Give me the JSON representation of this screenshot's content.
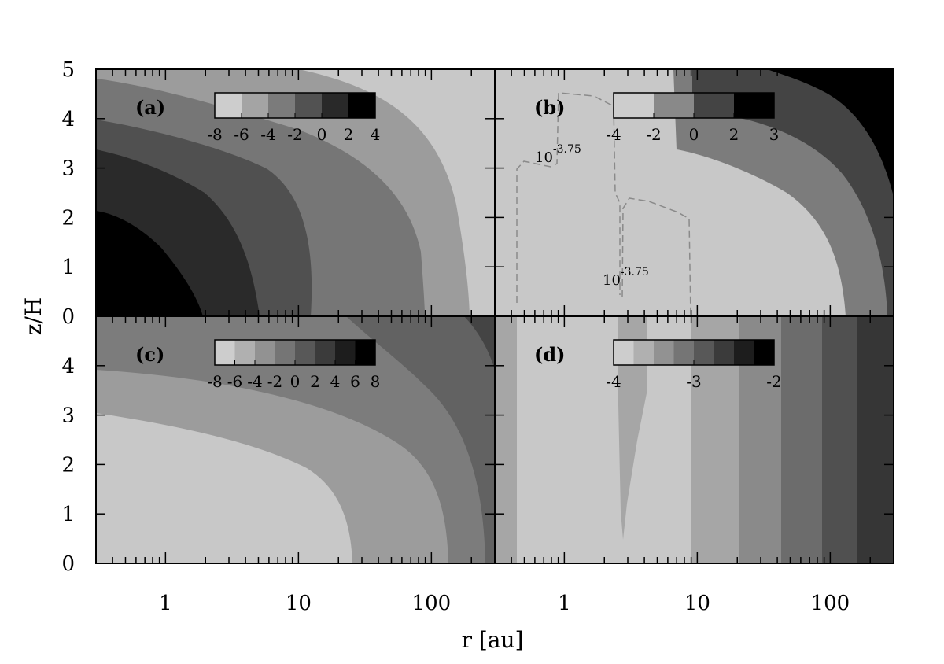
{
  "chart_data": {
    "type": "heatmap",
    "xlabel": "r [au]",
    "ylabel": "z/H",
    "x_scale": "log",
    "xlim": [
      0.3,
      300
    ],
    "ylim": [
      0,
      5
    ],
    "x_tick_labels": [
      {
        "value": 1,
        "label": "1"
      },
      {
        "value": 10,
        "label": "10"
      },
      {
        "value": 100,
        "label": "100"
      }
    ],
    "y_tick_labels_top": [
      "5",
      "4",
      "3",
      "2",
      "1",
      "0"
    ],
    "y_tick_labels_bottom": [
      "4",
      "3",
      "2",
      "1",
      "0"
    ],
    "panels": [
      {
        "label": "(a)",
        "colorbar": {
          "ticks": [
            "-8",
            "-6",
            "-4",
            "-2",
            "0",
            "2",
            "4"
          ],
          "levels": 6
        },
        "contours": []
      },
      {
        "label": "(b)",
        "colorbar": {
          "ticks": [
            "-4",
            "-2",
            "0",
            "2",
            "3"
          ],
          "levels": 4
        },
        "contours": [
          {
            "base": "10",
            "exponent": "-3.75"
          },
          {
            "base": "10",
            "exponent": "-3.75"
          }
        ]
      },
      {
        "label": "(c)",
        "colorbar": {
          "ticks": [
            "-8",
            "-6",
            "-4",
            "-2",
            "0",
            "2",
            "4",
            "6",
            "8"
          ],
          "levels": 8
        },
        "contours": []
      },
      {
        "label": "(d)",
        "colorbar": {
          "ticks": [
            "-4",
            "-3",
            "-2"
          ],
          "levels": 8
        },
        "contours": []
      }
    ]
  }
}
